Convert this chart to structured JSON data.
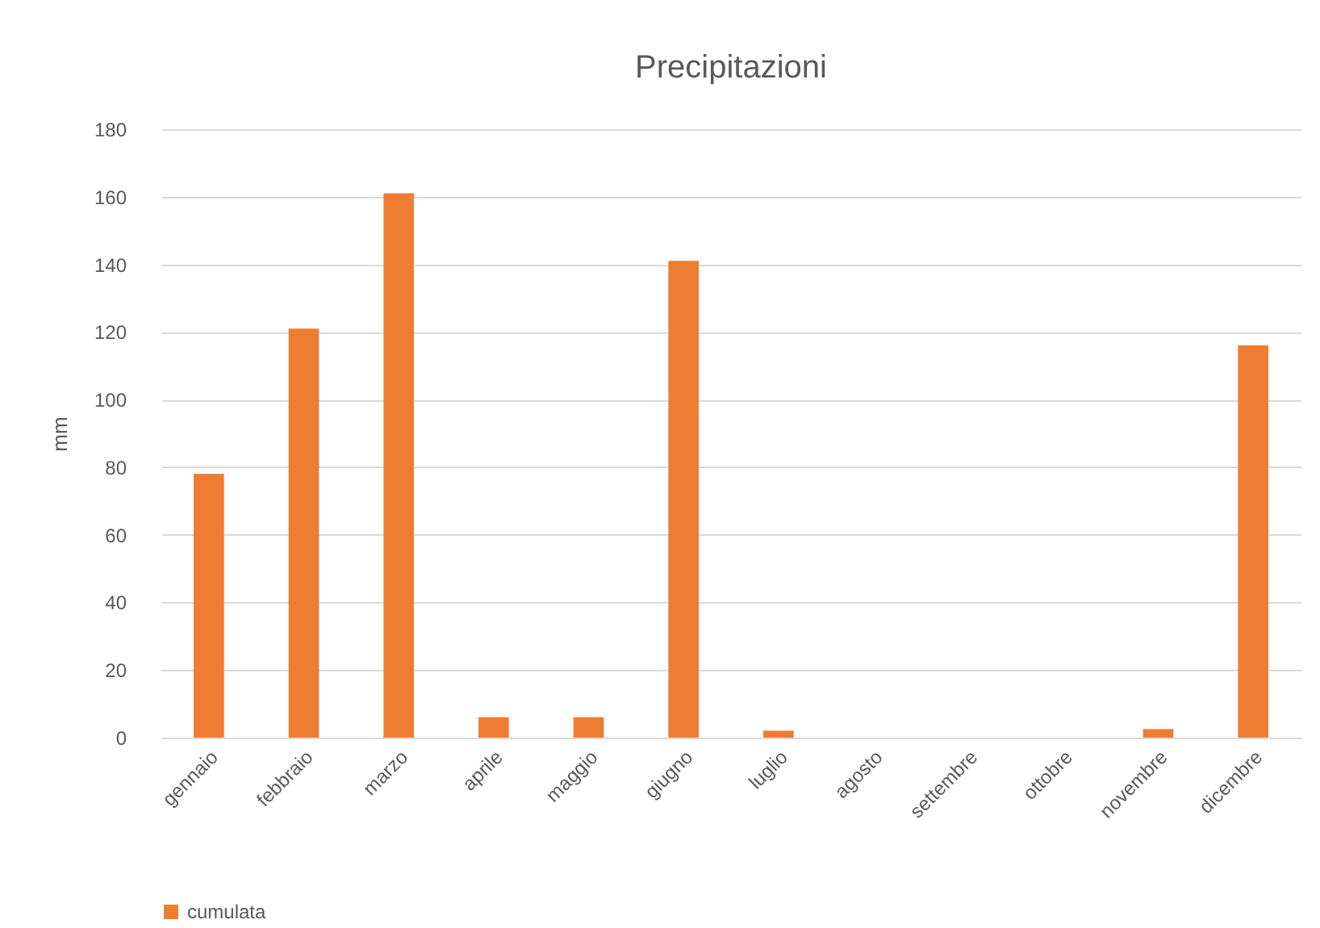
{
  "chart_data": {
    "type": "bar",
    "title": "Precipitazioni",
    "ylabel": "mm",
    "categories": [
      "gennaio",
      "febbraio",
      "marzo",
      "aprile",
      "maggio",
      "giugno",
      "luglio",
      "agosto",
      "settembre",
      "ottobre",
      "novembre",
      "dicembre"
    ],
    "series": [
      {
        "name": "cumulata",
        "color": "#ed7d31",
        "values": [
          78,
          121,
          161,
          6,
          6,
          141,
          2,
          0,
          0,
          0,
          2.5,
          116
        ]
      }
    ],
    "ylim": [
      0,
      180
    ],
    "yticks": [
      0,
      20,
      40,
      60,
      80,
      100,
      120,
      140,
      160,
      180
    ],
    "grid": "y",
    "legend": "bottom"
  }
}
